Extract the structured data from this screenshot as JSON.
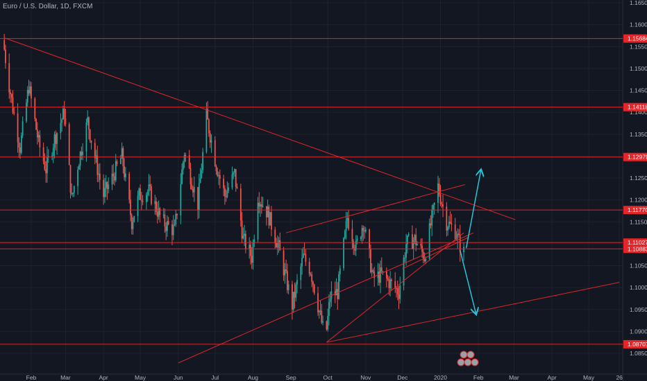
{
  "symbol_title": "Euro / U.S. Dollar, 1D, FXCM",
  "colors": {
    "background": "#131722",
    "grid": "#1e222d",
    "text": "#b2b5be",
    "hline": "#e2262a",
    "trendline": "#e2262a",
    "label_bg": "#e2262a",
    "label_text": "#ffffff",
    "candle_up": "#26a69a",
    "candle_down": "#ef5350",
    "arrow": "#26c6da"
  },
  "chart_data": {
    "type": "candlestick",
    "title": "Euro / U.S. Dollar, 1D, FXCM",
    "ylim": [
      1.0825,
      1.1665
    ],
    "x_tick_labels": [
      "Feb",
      "Mar",
      "Apr",
      "May",
      "Jun",
      "Jul",
      "Aug",
      "Sep",
      "Oct",
      "Nov",
      "Dec",
      "2020",
      "Feb",
      "Mar",
      "Apr",
      "May",
      "26"
    ],
    "x_tick_dates": [
      "2019-02-01",
      "2019-03-01",
      "2019-04-01",
      "2019-05-01",
      "2019-06-01",
      "2019-07-01",
      "2019-08-01",
      "2019-09-01",
      "2019-10-01",
      "2019-11-01",
      "2019-12-01",
      "2020-01-01",
      "2020-02-01",
      "2020-03-01",
      "2020-04-01",
      "2020-05-01",
      "2020-05-26"
    ],
    "y_tick_labels": [
      "1.16500",
      "1.16000",
      "1.15500",
      "1.15000",
      "1.14500",
      "1.14000",
      "1.13500",
      "1.13000",
      "1.12500",
      "1.12000",
      "1.11500",
      "1.11000",
      "1.10500",
      "1.10000",
      "1.09500",
      "1.09000",
      "1.08500"
    ],
    "y_ticks": [
      1.165,
      1.16,
      1.155,
      1.15,
      1.145,
      1.14,
      1.135,
      1.13,
      1.125,
      1.12,
      1.115,
      1.11,
      1.105,
      1.1,
      1.095,
      1.09,
      1.085
    ],
    "horizontal_levels": [
      {
        "value": 1.15684,
        "label": "1.15684"
      },
      {
        "value": 1.14118,
        "label": "1.14118"
      },
      {
        "value": 1.12979,
        "label": "1.12979"
      },
      {
        "value": 1.1177,
        "label": "1.11770"
      },
      {
        "value": 1.11027,
        "label": "1.11027"
      },
      {
        "value": 1.10883,
        "label": "1.10883"
      },
      {
        "value": 1.08707,
        "label": "1.08707"
      }
    ],
    "trendlines": [
      {
        "from": [
          "2019-01-10",
          1.157
        ],
        "to": [
          "2020-03-02",
          1.1155
        ]
      },
      {
        "from": [
          "2019-09-30",
          1.0875
        ],
        "to": [
          "2020-05-26",
          1.1012
        ]
      },
      {
        "from": [
          "2019-09-30",
          1.0875
        ],
        "to": [
          "2020-01-20",
          1.1125
        ]
      },
      {
        "from": [
          "2019-08-28",
          1.1125
        ],
        "to": [
          "2020-01-21",
          1.1235
        ]
      },
      {
        "from": [
          "2019-12-01",
          1.1043
        ],
        "to": [
          "2020-01-24",
          1.1115
        ]
      },
      {
        "from": [
          "2019-06-01",
          1.0828
        ],
        "to": [
          "2020-01-28",
          1.1125
        ]
      }
    ],
    "arrows": [
      {
        "from": [
          "2020-01-22",
          1.109
        ],
        "to": [
          "2020-02-03",
          1.1268
        ]
      },
      {
        "from": [
          "2020-01-17",
          1.1085
        ],
        "to": [
          "2020-01-30",
          1.094
        ]
      }
    ],
    "price_path": [
      [
        "2019-01-10",
        1.1565
      ],
      [
        "2019-01-14",
        1.148
      ],
      [
        "2019-01-18",
        1.141
      ],
      [
        "2019-01-24",
        1.132
      ],
      [
        "2019-01-31",
        1.146
      ],
      [
        "2019-02-08",
        1.133
      ],
      [
        "2019-02-14",
        1.127
      ],
      [
        "2019-02-21",
        1.134
      ],
      [
        "2019-03-01",
        1.14
      ],
      [
        "2019-03-07",
        1.12
      ],
      [
        "2019-03-12",
        1.128
      ],
      [
        "2019-03-20",
        1.138
      ],
      [
        "2019-03-25",
        1.131
      ],
      [
        "2019-04-02",
        1.121
      ],
      [
        "2019-04-09",
        1.125
      ],
      [
        "2019-04-17",
        1.13
      ],
      [
        "2019-04-25",
        1.115
      ],
      [
        "2019-05-01",
        1.121
      ],
      [
        "2019-05-09",
        1.122
      ],
      [
        "2019-05-20",
        1.115
      ],
      [
        "2019-05-30",
        1.113
      ],
      [
        "2019-06-07",
        1.131
      ],
      [
        "2019-06-18",
        1.119
      ],
      [
        "2019-06-25",
        1.139
      ],
      [
        "2019-07-03",
        1.128
      ],
      [
        "2019-07-10",
        1.121
      ],
      [
        "2019-07-18",
        1.126
      ],
      [
        "2019-07-25",
        1.111
      ],
      [
        "2019-08-01",
        1.107
      ],
      [
        "2019-08-06",
        1.121
      ],
      [
        "2019-08-14",
        1.117
      ],
      [
        "2019-08-23",
        1.109
      ],
      [
        "2019-09-03",
        1.096
      ],
      [
        "2019-09-12",
        1.107
      ],
      [
        "2019-09-18",
        1.104
      ],
      [
        "2019-09-30",
        1.088
      ],
      [
        "2019-10-04",
        1.098
      ],
      [
        "2019-10-10",
        1.099
      ],
      [
        "2019-10-18",
        1.116
      ],
      [
        "2019-10-25",
        1.109
      ],
      [
        "2019-10-31",
        1.115
      ],
      [
        "2019-11-08",
        1.102
      ],
      [
        "2019-11-15",
        1.103
      ],
      [
        "2019-11-29",
        1.099
      ],
      [
        "2019-12-05",
        1.11
      ],
      [
        "2019-12-12",
        1.111
      ],
      [
        "2019-12-20",
        1.107
      ],
      [
        "2019-12-31",
        1.123
      ],
      [
        "2020-01-07",
        1.115
      ],
      [
        "2020-01-14",
        1.113
      ],
      [
        "2020-01-20",
        1.108
      ]
    ]
  }
}
